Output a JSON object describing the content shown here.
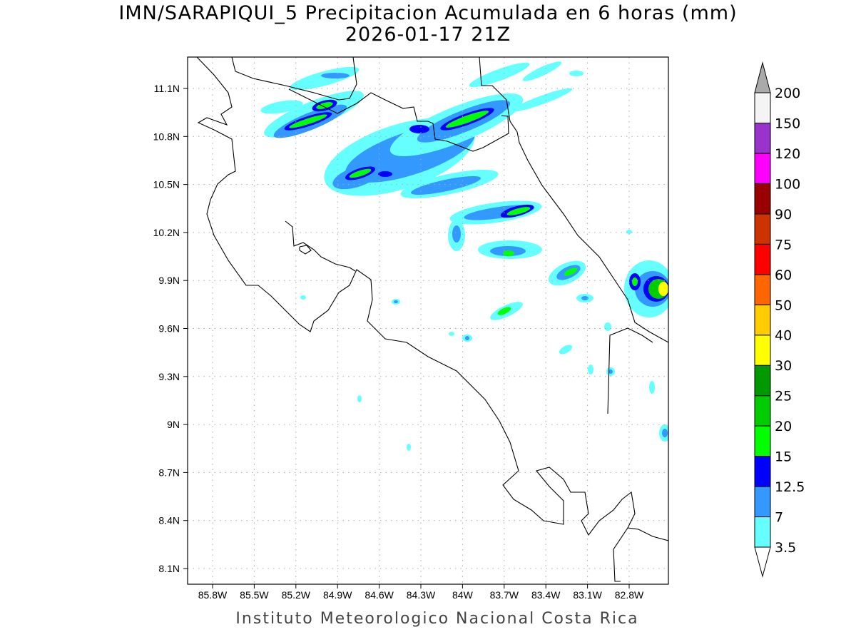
{
  "title": {
    "line1": "IMN/SARAPIQUI_5 Precipitacion Acumulada en 6 horas (mm)",
    "line2": "2026-01-17 21Z"
  },
  "footer": "Instituto Meteorologico Nacional Costa Rica",
  "axes": {
    "lon_ticks": [
      {
        "value": -85.8,
        "label": "85.8W"
      },
      {
        "value": -85.5,
        "label": "85.5W"
      },
      {
        "value": -85.2,
        "label": "85.2W"
      },
      {
        "value": -84.9,
        "label": "84.9W"
      },
      {
        "value": -84.6,
        "label": "84.6W"
      },
      {
        "value": -84.3,
        "label": "84.3W"
      },
      {
        "value": -84.0,
        "label": "84W"
      },
      {
        "value": -83.7,
        "label": "83.7W"
      },
      {
        "value": -83.4,
        "label": "83.4W"
      },
      {
        "value": -83.1,
        "label": "83.1W"
      },
      {
        "value": -82.8,
        "label": "82.8W"
      }
    ],
    "lat_ticks": [
      {
        "value": 11.1,
        "label": "11.1N"
      },
      {
        "value": 10.8,
        "label": "10.8N"
      },
      {
        "value": 10.5,
        "label": "10.5N"
      },
      {
        "value": 10.2,
        "label": "10.2N"
      },
      {
        "value": 9.9,
        "label": "9.9N"
      },
      {
        "value": 9.6,
        "label": "9.6N"
      },
      {
        "value": 9.3,
        "label": "9.3N"
      },
      {
        "value": 9.0,
        "label": "9N"
      },
      {
        "value": 8.7,
        "label": "8.7N"
      },
      {
        "value": 8.4,
        "label": "8.4N"
      },
      {
        "value": 8.1,
        "label": "8.1N"
      }
    ]
  },
  "colorbar": {
    "levels": [
      "3.5",
      "7",
      "12.5",
      "15",
      "20",
      "25",
      "30",
      "40",
      "50",
      "60",
      "75",
      "90",
      "100",
      "120",
      "150",
      "200"
    ],
    "colors": [
      "#66ffff",
      "#3399ff",
      "#0000ff",
      "#00ff00",
      "#00cc00",
      "#009900",
      "#ffff00",
      "#ffcc00",
      "#ff6600",
      "#ff0000",
      "#cc3300",
      "#990000",
      "#ff00ff",
      "#9933cc",
      "#f4f4f4"
    ],
    "over_color": "#aaaaaa",
    "under_color": "#ffffff"
  }
}
